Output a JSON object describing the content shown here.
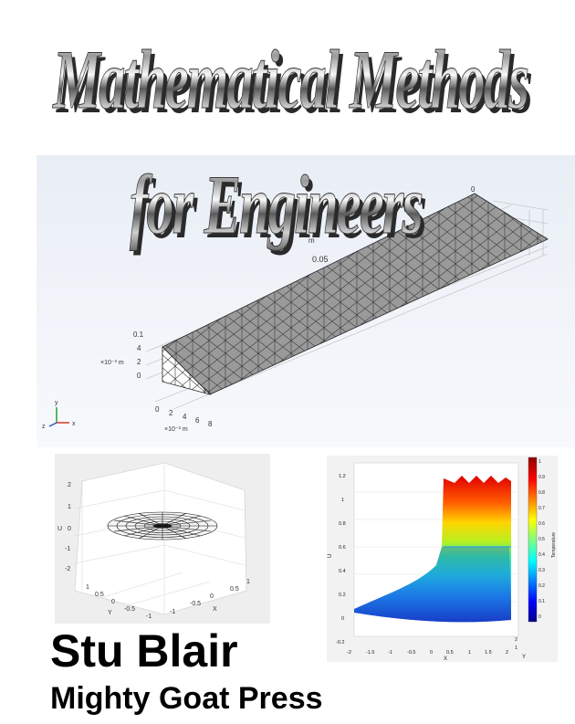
{
  "cover": {
    "title_line1": "Mathematical Methods",
    "title_line2": "for Engineers",
    "author": "Stu Blair",
    "publisher": "Mighty Goat Press"
  },
  "mesh_figure": {
    "tick_top_0": "0",
    "tick_top_m": "m",
    "tick_mid": "0.05",
    "tick_y_top": "0.1",
    "z_ticks": [
      "4",
      "2",
      "0"
    ],
    "z_unit": "×10⁻³ m",
    "x_ticks": [
      "0",
      "2",
      "4",
      "6",
      "8"
    ],
    "x_unit": "×10⁻³ m",
    "axis_y": "y",
    "axis_z": "z",
    "axis_x": "x"
  },
  "surface_figure": {
    "z_ticks": [
      "2",
      "1",
      "0",
      "-1",
      "-2"
    ],
    "z_label": "U",
    "y_ticks": [
      "1",
      "0.5",
      "0",
      "-0.5",
      "-1"
    ],
    "y_label": "Y",
    "x_ticks": [
      "-1",
      "-0.5",
      "0",
      "0.5",
      "1"
    ],
    "x_label": "X"
  },
  "heat_figure": {
    "y_ticks": [
      "1.2",
      "1",
      "0.8",
      "0.6",
      "0.4",
      "0.2",
      "0",
      "-0.2"
    ],
    "y_label": "U",
    "x_ticks": [
      "-2",
      "-1.5",
      "-1",
      "-0.5",
      "0",
      "0.5",
      "1",
      "1.5",
      "2"
    ],
    "x_label": "X",
    "depth_ticks": [
      "2",
      "1"
    ],
    "depth_label": "Y",
    "colorbar_ticks": [
      "1",
      "0.9",
      "0.8",
      "0.7",
      "0.6",
      "0.5",
      "0.4",
      "0.3",
      "0.2",
      "0.1",
      "0"
    ],
    "colorbar_label": "Temperature"
  }
}
